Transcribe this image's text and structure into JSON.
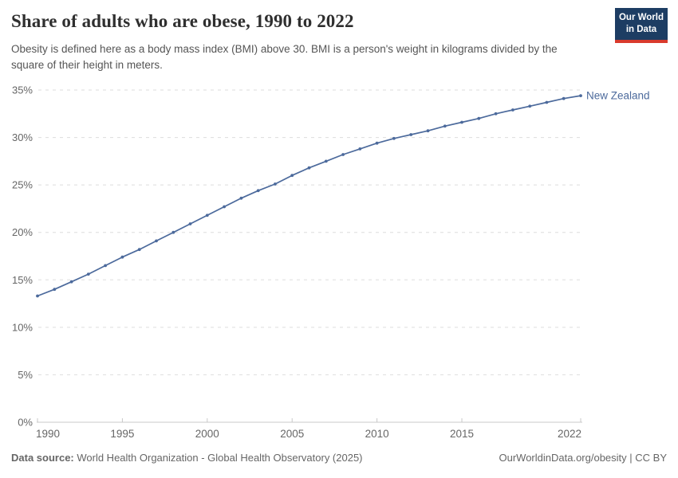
{
  "header": {
    "title": "Share of adults who are obese, 1990 to 2022",
    "subtitle": "Obesity is defined here as a body mass index (BMI) above 30. BMI is a person's weight in kilograms divided by the square of their height in meters."
  },
  "logo": {
    "line1": "Our World",
    "line2": "in Data"
  },
  "chart_data": {
    "type": "line",
    "title": "Share of adults who are obese, 1990 to 2022",
    "x": [
      1990,
      1991,
      1992,
      1993,
      1994,
      1995,
      1996,
      1997,
      1998,
      1999,
      2000,
      2001,
      2002,
      2003,
      2004,
      2005,
      2006,
      2007,
      2008,
      2009,
      2010,
      2011,
      2012,
      2013,
      2014,
      2015,
      2016,
      2017,
      2018,
      2019,
      2020,
      2021,
      2022
    ],
    "series": [
      {
        "name": "New Zealand",
        "color": "#4C6A9C",
        "values": [
          13.3,
          14.0,
          14.8,
          15.6,
          16.5,
          17.4,
          18.2,
          19.1,
          20.0,
          20.9,
          21.8,
          22.7,
          23.6,
          24.4,
          25.1,
          26.0,
          26.8,
          27.5,
          28.2,
          28.8,
          29.4,
          29.9,
          30.3,
          30.7,
          31.2,
          31.6,
          32.0,
          32.5,
          32.9,
          33.3,
          33.7,
          34.1,
          34.4
        ]
      }
    ],
    "xlabel": "",
    "ylabel": "",
    "xlim": [
      1990,
      2022
    ],
    "ylim": [
      0,
      35
    ],
    "xticks": [
      1990,
      1995,
      2000,
      2005,
      2010,
      2015,
      2022
    ],
    "yticks": [
      0,
      5,
      10,
      15,
      20,
      25,
      30,
      35
    ],
    "ytick_suffix": "%",
    "grid": "horizontal-dashed",
    "legend_position": "end-of-line-label",
    "markers": "circle-every-year"
  },
  "footer": {
    "data_source_label": "Data source:",
    "data_source_text": " World Health Organization - Global Health Observatory (2025)",
    "link_text": "OurWorldinData.org/obesity | CC BY"
  },
  "theme": {
    "line_color": "#4C6A9C",
    "series_label_color": "#4C6A9C",
    "logo_bg": "#1D3D63",
    "logo_accent": "#D93A2D",
    "grid_color": "#DDDDDD",
    "axis_color": "#C8C8C8",
    "tick_label_color": "#666666",
    "title_color": "#2F2F2F",
    "subtitle_color": "#555555",
    "footer_color": "#666666"
  }
}
